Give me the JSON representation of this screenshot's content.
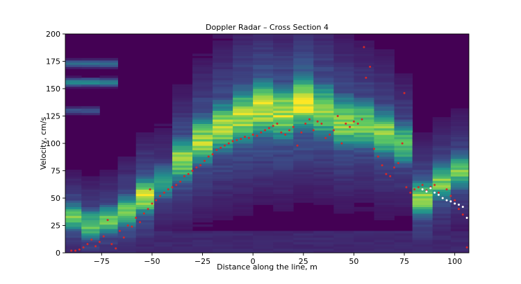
{
  "chart_data": {
    "type": "heatmap",
    "title": "Doppler Radar – Cross Section 4",
    "xlabel": "Distance along the line, m",
    "ylabel": "Velocity, cm/s",
    "xlim": [
      -93,
      107
    ],
    "ylim": [
      0,
      200
    ],
    "x_ticks": [
      -75,
      -50,
      -25,
      0,
      25,
      50,
      75,
      100
    ],
    "y_ticks": [
      0,
      25,
      50,
      75,
      100,
      125,
      150,
      175,
      200
    ],
    "x_tick_labels": [
      "−75",
      "−50",
      "−25",
      "0",
      "25",
      "50",
      "75",
      "100"
    ],
    "y_tick_labels": [
      "0",
      "25",
      "50",
      "75",
      "100",
      "125",
      "150",
      "175",
      "200"
    ],
    "colormap": [
      "#440154",
      "#3b528b",
      "#21918c",
      "#5ec962",
      "#fde725"
    ],
    "background_color": "#440154",
    "grid": false,
    "profiles": [
      {
        "x_start": -93,
        "x_end": -85,
        "peak_velocity": 33,
        "width": 9,
        "intensity": 0.8
      },
      {
        "x_start": -85,
        "x_end": -76,
        "peak_velocity": 26,
        "width": 10,
        "intensity": 0.75
      },
      {
        "x_start": -76,
        "x_end": -67,
        "peak_velocity": 30,
        "width": 10,
        "intensity": 0.75
      },
      {
        "x_start": -67,
        "x_end": -58,
        "peak_velocity": 38,
        "width": 11,
        "intensity": 0.8
      },
      {
        "x_start": -58,
        "x_end": -49,
        "peak_velocity": 52,
        "width": 12,
        "intensity": 0.9
      },
      {
        "x_start": -49,
        "x_end": -40,
        "peak_velocity": 65,
        "width": 12,
        "intensity": 0.6
      },
      {
        "x_start": -40,
        "x_end": -30,
        "peak_velocity": 85,
        "width": 14,
        "intensity": 0.85
      },
      {
        "x_start": -30,
        "x_end": -20,
        "peak_velocity": 103,
        "width": 16,
        "intensity": 0.85
      },
      {
        "x_start": -20,
        "x_end": -10,
        "peak_velocity": 115,
        "width": 17,
        "intensity": 0.85
      },
      {
        "x_start": -10,
        "x_end": 0,
        "peak_velocity": 125,
        "width": 18,
        "intensity": 0.9
      },
      {
        "x_start": 0,
        "x_end": 10,
        "peak_velocity": 132,
        "width": 18,
        "intensity": 0.95
      },
      {
        "x_start": 10,
        "x_end": 20,
        "peak_velocity": 128,
        "width": 18,
        "intensity": 0.9
      },
      {
        "x_start": 20,
        "x_end": 30,
        "peak_velocity": 138,
        "width": 18,
        "intensity": 1.0
      },
      {
        "x_start": 30,
        "x_end": 40,
        "peak_velocity": 130,
        "width": 18,
        "intensity": 0.85
      },
      {
        "x_start": 40,
        "x_end": 50,
        "peak_velocity": 120,
        "width": 17,
        "intensity": 0.85
      },
      {
        "x_start": 50,
        "x_end": 60,
        "peak_velocity": 118,
        "width": 16,
        "intensity": 0.8
      },
      {
        "x_start": 60,
        "x_end": 70,
        "peak_velocity": 110,
        "width": 16,
        "intensity": 0.8
      },
      {
        "x_start": 70,
        "x_end": 79,
        "peak_velocity": 100,
        "width": 14,
        "intensity": 0.75
      },
      {
        "x_start": 79,
        "x_end": 89,
        "peak_velocity": 50,
        "width": 12,
        "intensity": 0.85
      },
      {
        "x_start": 89,
        "x_end": 98,
        "peak_velocity": 65,
        "width": 12,
        "intensity": 0.8
      },
      {
        "x_start": 98,
        "x_end": 107,
        "peak_velocity": 75,
        "width": 12,
        "intensity": 0.75
      }
    ],
    "high_velocity_bands": [
      {
        "x_start": -93,
        "x_end": -60,
        "velocity": 156,
        "intensity": 0.45
      },
      {
        "x_start": -93,
        "x_end": -60,
        "velocity": 173,
        "intensity": 0.35
      },
      {
        "x_start": -93,
        "x_end": -75,
        "velocity": 130,
        "intensity": 0.25
      }
    ],
    "series": [
      {
        "marker_color": "#d62728",
        "points": [
          [
            -90,
            2
          ],
          [
            -88,
            2
          ],
          [
            -86,
            3
          ],
          [
            -84,
            5
          ],
          [
            -82,
            8
          ],
          [
            -80,
            12
          ],
          [
            -78,
            6
          ],
          [
            -76,
            10
          ],
          [
            -74,
            15
          ],
          [
            -72,
            30
          ],
          [
            -70,
            8
          ],
          [
            -68,
            4
          ],
          [
            -66,
            20
          ],
          [
            -64,
            14
          ],
          [
            -62,
            25
          ],
          [
            -60,
            24
          ],
          [
            -58,
            32
          ],
          [
            -56,
            28
          ],
          [
            -54,
            36
          ],
          [
            -52,
            40
          ],
          [
            -51,
            58
          ],
          [
            -50,
            45
          ],
          [
            -48,
            48
          ],
          [
            -46,
            52
          ],
          [
            -44,
            55
          ],
          [
            -42,
            58
          ],
          [
            -40,
            60
          ],
          [
            -38,
            62
          ],
          [
            -36,
            65
          ],
          [
            -34,
            70
          ],
          [
            -32,
            72
          ],
          [
            -30,
            75
          ],
          [
            -28,
            78
          ],
          [
            -26,
            80
          ],
          [
            -24,
            84
          ],
          [
            -22,
            88
          ],
          [
            -20,
            90
          ],
          [
            -18,
            94
          ],
          [
            -16,
            96
          ],
          [
            -14,
            98
          ],
          [
            -12,
            100
          ],
          [
            -10,
            102
          ],
          [
            -8,
            103
          ],
          [
            -6,
            104
          ],
          [
            -4,
            106
          ],
          [
            -2,
            105
          ],
          [
            0,
            108
          ],
          [
            2,
            107
          ],
          [
            4,
            110
          ],
          [
            6,
            112
          ],
          [
            8,
            114
          ],
          [
            10,
            116
          ],
          [
            12,
            118
          ],
          [
            14,
            110
          ],
          [
            16,
            108
          ],
          [
            18,
            112
          ],
          [
            20,
            115
          ],
          [
            22,
            98
          ],
          [
            24,
            110
          ],
          [
            26,
            118
          ],
          [
            28,
            122
          ],
          [
            30,
            112
          ],
          [
            32,
            120
          ],
          [
            34,
            118
          ],
          [
            36,
            105
          ],
          [
            38,
            108
          ],
          [
            40,
            112
          ],
          [
            42,
            125
          ],
          [
            44,
            100
          ],
          [
            46,
            118
          ],
          [
            48,
            115
          ],
          [
            50,
            120
          ],
          [
            52,
            118
          ],
          [
            54,
            122
          ],
          [
            55,
            188
          ],
          [
            56,
            160
          ],
          [
            58,
            170
          ],
          [
            60,
            95
          ],
          [
            62,
            88
          ],
          [
            64,
            80
          ],
          [
            66,
            72
          ],
          [
            68,
            70
          ],
          [
            70,
            78
          ],
          [
            72,
            82
          ],
          [
            74,
            100
          ],
          [
            75,
            146
          ],
          [
            76,
            60
          ],
          [
            78,
            55
          ],
          [
            80,
            58
          ],
          [
            82,
            60
          ],
          [
            84,
            62
          ],
          [
            86,
            57
          ],
          [
            88,
            60
          ],
          [
            90,
            62
          ],
          [
            92,
            55
          ],
          [
            94,
            50
          ],
          [
            96,
            58
          ],
          [
            98,
            52
          ],
          [
            100,
            48
          ],
          [
            102,
            40
          ],
          [
            104,
            35
          ],
          [
            106,
            5
          ]
        ]
      },
      {
        "marker_color": "#ffffff",
        "points": [
          [
            84,
            58
          ],
          [
            86,
            56
          ],
          [
            88,
            59
          ],
          [
            90,
            55
          ],
          [
            92,
            53
          ],
          [
            94,
            50
          ],
          [
            96,
            48
          ],
          [
            98,
            47
          ],
          [
            100,
            45
          ],
          [
            102,
            44
          ],
          [
            104,
            42
          ],
          [
            106,
            32
          ]
        ]
      }
    ]
  }
}
